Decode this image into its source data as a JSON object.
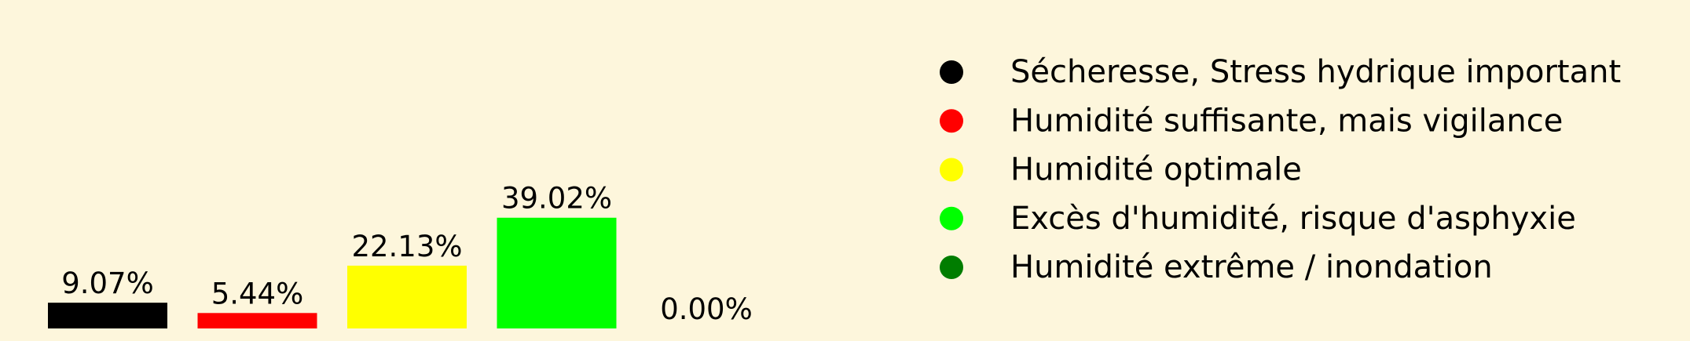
{
  "chart_data": {
    "type": "bar",
    "categories": [
      "Sécheresse, Stress hydrique important",
      "Humidité suffisante, mais vigilance",
      "Humidité optimale",
      "Excès d'humidité, risque d'asphyxie",
      "Humidité extrême / inondation"
    ],
    "values": [
      9.07,
      5.44,
      22.13,
      39.02,
      0.0
    ],
    "data_labels": [
      "9.07%",
      "5.44%",
      "22.13%",
      "39.02%",
      "0.00%"
    ],
    "colors": [
      "#000000",
      "#ff0000",
      "#ffff00",
      "#00ff00",
      "#007d00"
    ],
    "background": "#fdf6dc",
    "axes_visible": false,
    "grid": false,
    "legend": {
      "placement": "right",
      "marker": "circle",
      "entries": [
        "Sécheresse, Stress hydrique important",
        "Humidité suffisante, mais vigilance",
        "Humidité optimale",
        "Excès d'humidité, risque d'asphyxie",
        "Humidité extrême / inondation"
      ]
    }
  }
}
